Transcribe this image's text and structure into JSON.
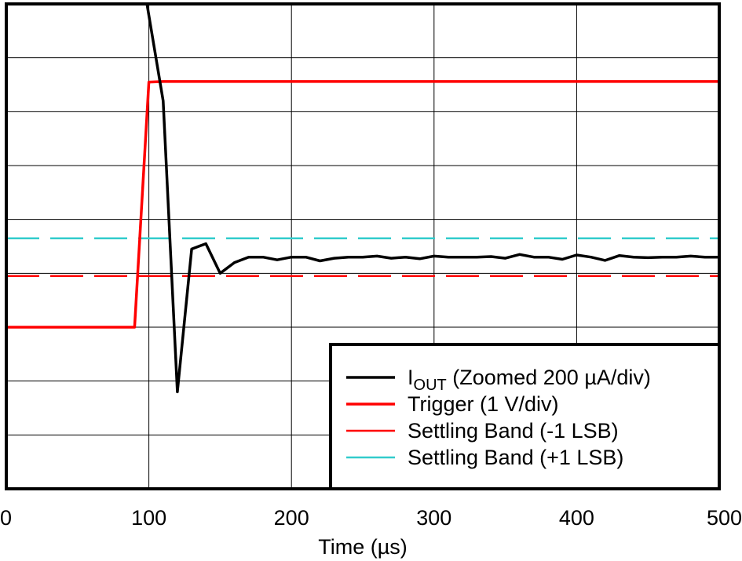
{
  "chart_data": {
    "type": "line",
    "title": "",
    "xlabel": "Time (µs)",
    "ylabel": "",
    "xlim": [
      0,
      500
    ],
    "ylim": [
      0,
      9
    ],
    "x_ticks": [
      "0",
      "100",
      "200",
      "300",
      "400",
      "500"
    ],
    "grid": true,
    "legend_position": "bottom-right",
    "series": [
      {
        "name": "IOUT (Zoomed 200 µA/div)",
        "label_main": "I",
        "label_sub": "OUT",
        "label_rest": " (Zoomed 200 µA/div)",
        "color": "#000000",
        "width": 3.5,
        "dash": "",
        "x": [
          98,
          110,
          120,
          130,
          140,
          150,
          160,
          170,
          180,
          190,
          200,
          210,
          220,
          230,
          240,
          250,
          260,
          270,
          280,
          290,
          300,
          310,
          320,
          330,
          340,
          350,
          360,
          370,
          380,
          390,
          400,
          410,
          420,
          430,
          440,
          450,
          460,
          470,
          480,
          490,
          500
        ],
        "y": [
          9.1,
          7.2,
          1.8,
          4.45,
          4.55,
          4.0,
          4.2,
          4.3,
          4.3,
          4.25,
          4.3,
          4.3,
          4.23,
          4.28,
          4.3,
          4.3,
          4.32,
          4.28,
          4.3,
          4.27,
          4.32,
          4.3,
          4.3,
          4.3,
          4.31,
          4.28,
          4.35,
          4.3,
          4.3,
          4.26,
          4.34,
          4.3,
          4.24,
          4.33,
          4.3,
          4.29,
          4.3,
          4.3,
          4.32,
          4.3,
          4.3
        ]
      },
      {
        "name": "Trigger (1 V/div)",
        "color": "#ff0000",
        "width": 3.5,
        "dash": "",
        "x": [
          0,
          90,
          100,
          110,
          500
        ],
        "y": [
          3.0,
          3.0,
          7.55,
          7.56,
          7.56
        ]
      },
      {
        "name": "Settling Band (-1 LSB)",
        "color": "#ff0000",
        "width": 2.5,
        "dash": "42,14",
        "x": [
          0,
          500
        ],
        "y": [
          3.95,
          3.95
        ]
      },
      {
        "name": "Settling Band (+1 LSB)",
        "color": "#33cccc",
        "width": 2.5,
        "dash": "42,14",
        "x": [
          0,
          500
        ],
        "y": [
          4.65,
          4.65
        ]
      }
    ]
  }
}
